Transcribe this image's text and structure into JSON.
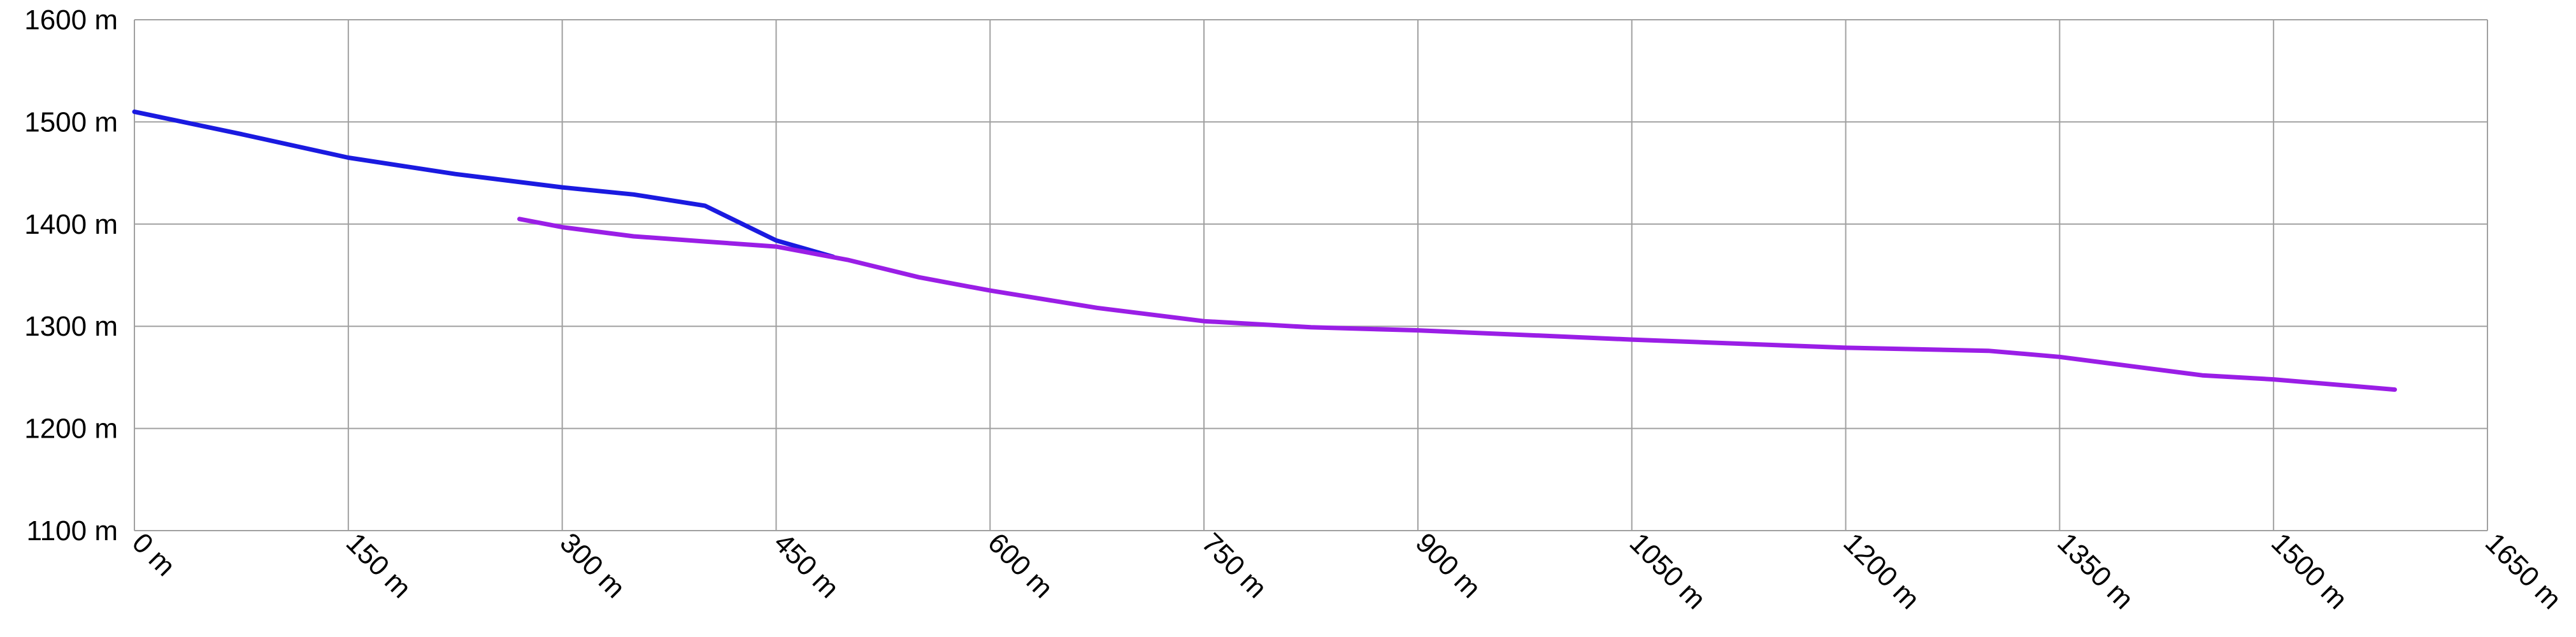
{
  "chart_data": {
    "type": "line",
    "xlim": [
      0,
      1650
    ],
    "ylim": [
      1100,
      1600
    ],
    "xticks": [
      {
        "value": 0,
        "label": "0 m"
      },
      {
        "value": 150,
        "label": "150 m"
      },
      {
        "value": 300,
        "label": "300 m"
      },
      {
        "value": 450,
        "label": "450 m"
      },
      {
        "value": 600,
        "label": "600 m"
      },
      {
        "value": 750,
        "label": "750 m"
      },
      {
        "value": 900,
        "label": "900 m"
      },
      {
        "value": 1050,
        "label": "1050 m"
      },
      {
        "value": 1200,
        "label": "1200 m"
      },
      {
        "value": 1350,
        "label": "1350 m"
      },
      {
        "value": 1500,
        "label": "1500 m"
      },
      {
        "value": 1650,
        "label": "1650 m"
      }
    ],
    "yticks": [
      {
        "value": 1100,
        "label": "1100 m"
      },
      {
        "value": 1200,
        "label": "1200 m"
      },
      {
        "value": 1300,
        "label": "1300 m"
      },
      {
        "value": 1400,
        "label": "1400 m"
      },
      {
        "value": 1500,
        "label": "1500 m"
      },
      {
        "value": 1600,
        "label": "1600 m"
      }
    ],
    "grid": true,
    "series": [
      {
        "color": "#1a1ae0",
        "x": [
          0,
          75,
          150,
          225,
          300,
          350,
          400,
          450,
          490
        ],
        "values": [
          1510,
          1488,
          1465,
          1449,
          1436,
          1429,
          1418,
          1384,
          1368
        ]
      },
      {
        "color": "#9a1ee6",
        "x": [
          270,
          300,
          350,
          400,
          450,
          500,
          550,
          600,
          675,
          750,
          825,
          900,
          1050,
          1200,
          1300,
          1350,
          1400,
          1450,
          1500,
          1585
        ],
        "values": [
          1405,
          1397,
          1388,
          1383,
          1378,
          1365,
          1348,
          1335,
          1318,
          1305,
          1299,
          1296,
          1287,
          1279,
          1276,
          1270,
          1261,
          1252,
          1248,
          1238
        ]
      }
    ]
  }
}
